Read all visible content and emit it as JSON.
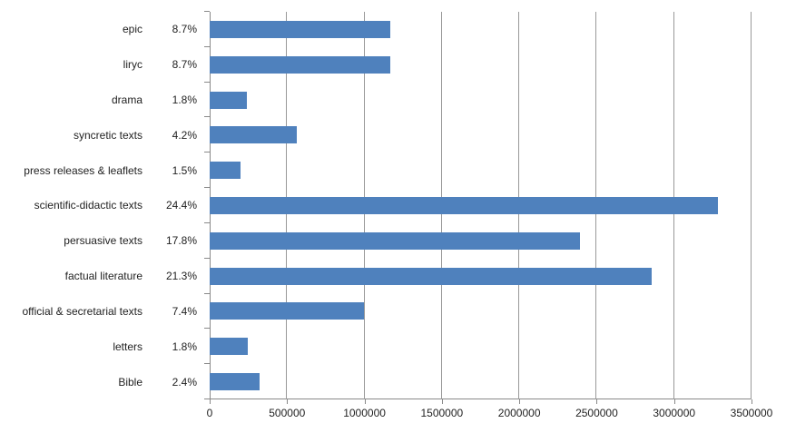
{
  "chart_data": {
    "type": "bar",
    "orientation": "horizontal",
    "title": "",
    "xlabel": "",
    "ylabel": "",
    "grid": true,
    "legend": false,
    "xlim": [
      0,
      3500000
    ],
    "x_tick_values": [
      0,
      500000,
      1000000,
      1500000,
      2000000,
      2500000,
      3000000,
      3500000
    ],
    "x_tick_labels": [
      "0",
      "500000",
      "1000000",
      "1500000",
      "2000000",
      "2500000",
      "3000000",
      "3500000"
    ],
    "categories": [
      "epic",
      "liryc",
      "drama",
      "syncretic texts",
      "press releases & leaflets",
      "scientific-didactic texts",
      "persuasive texts",
      "factual literature",
      "official & secretarial texts",
      "letters",
      "Bible"
    ],
    "percent_labels": [
      "8.7%",
      "8.7%",
      "1.8%",
      "4.2%",
      "1.5%",
      "24.4%",
      "17.8%",
      "21.3%",
      "7.4%",
      "1.8%",
      "2.4%"
    ],
    "values": [
      1165000,
      1165000,
      240000,
      565000,
      200000,
      3285000,
      2390000,
      2855000,
      995000,
      245000,
      325000
    ],
    "rows": [
      {
        "category": "epic",
        "percent": "8.7%",
        "value": 1165000
      },
      {
        "category": "liryc",
        "percent": "8.7%",
        "value": 1165000
      },
      {
        "category": "drama",
        "percent": "1.8%",
        "value": 240000
      },
      {
        "category": "syncretic texts",
        "percent": "4.2%",
        "value": 565000
      },
      {
        "category": "press releases & leaflets",
        "percent": "1.5%",
        "value": 200000
      },
      {
        "category": "scientific-didactic texts",
        "percent": "24.4%",
        "value": 3285000
      },
      {
        "category": "persuasive texts",
        "percent": "17.8%",
        "value": 2390000
      },
      {
        "category": "factual literature",
        "percent": "21.3%",
        "value": 2855000
      },
      {
        "category": "official & secretarial texts",
        "percent": "7.4%",
        "value": 995000
      },
      {
        "category": "letters",
        "percent": "1.8%",
        "value": 245000
      },
      {
        "category": "Bible",
        "percent": "2.4%",
        "value": 325000
      }
    ],
    "colors": {
      "bar": "#4F81BD",
      "axis": "#898989",
      "gridline": "#999999",
      "text": "#222222",
      "background": "#FFFFFF"
    }
  }
}
